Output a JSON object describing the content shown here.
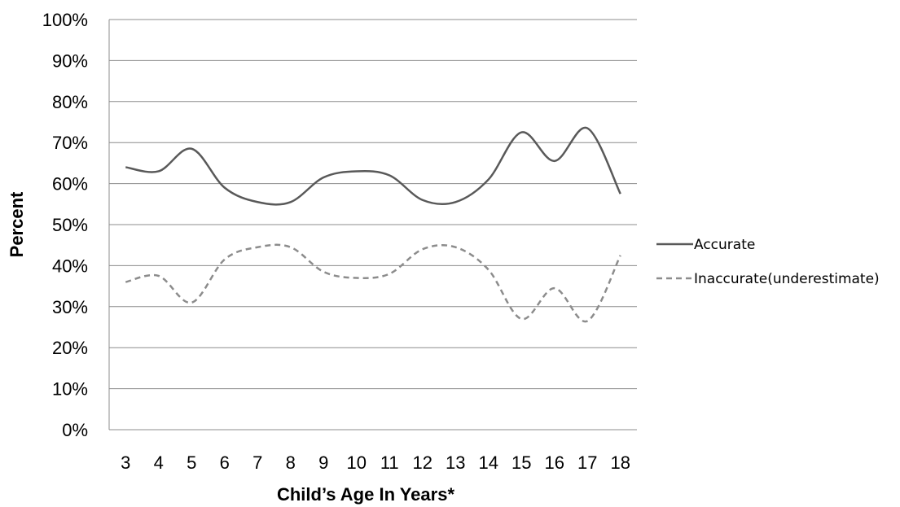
{
  "chart_data": {
    "type": "line",
    "title": "",
    "xlabel": "Child’s Age In Years*",
    "ylabel": "Percent",
    "categories": [
      "3",
      "4",
      "5",
      "6",
      "7",
      "8",
      "9",
      "10",
      "11",
      "12",
      "13",
      "14",
      "15",
      "16",
      "17",
      "18"
    ],
    "ylim": [
      0,
      100
    ],
    "yticks": [
      "0%",
      "10%",
      "20%",
      "30%",
      "40%",
      "50%",
      "60%",
      "70%",
      "80%",
      "90%",
      "100%"
    ],
    "grid": true,
    "legend_position": "right",
    "series": [
      {
        "name": "Accurate",
        "style": "solid",
        "color": "#595959",
        "values": [
          64,
          63,
          68.5,
          59,
          55.5,
          55.5,
          61.5,
          63,
          62,
          56,
          55.5,
          61,
          72.5,
          65.5,
          73.5,
          57.5
        ]
      },
      {
        "name": "Inaccurate(underestimate)",
        "style": "dashed",
        "color": "#8c8c8c",
        "values": [
          36,
          37.5,
          31,
          41.5,
          44.5,
          44.5,
          38.5,
          37,
          38,
          44,
          44.5,
          39,
          27,
          34.5,
          26.5,
          42.5
        ]
      }
    ]
  }
}
